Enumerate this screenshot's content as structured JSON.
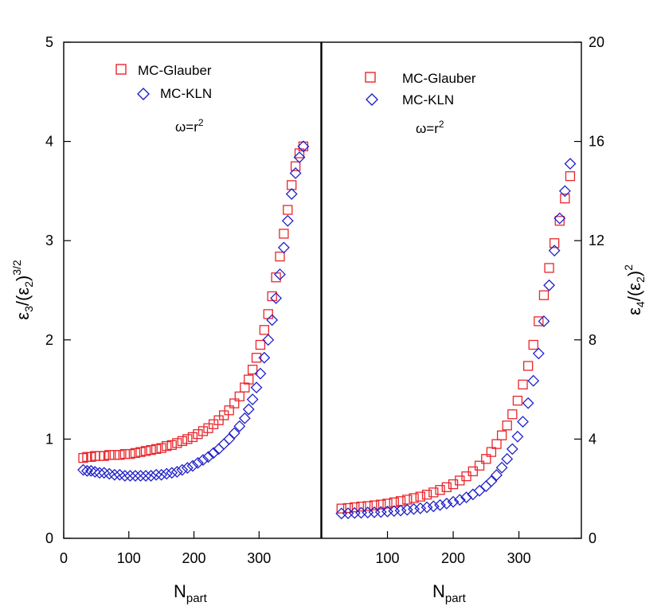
{
  "chart_data": [
    {
      "type": "scatter",
      "panel": "left",
      "xlabel": "N",
      "xlabel_sub": "part",
      "ylabel": "ε3/(ε2)^3/2",
      "xlim": [
        0,
        395
      ],
      "ylim": [
        0,
        5
      ],
      "xticks": [
        0,
        100,
        200,
        300
      ],
      "xtick_labels": [
        "0",
        "100",
        "200",
        "300"
      ],
      "yticks": [
        0,
        1,
        2,
        3,
        4,
        5
      ],
      "ytick_labels": [
        "0",
        "1",
        "2",
        "3",
        "4",
        "5"
      ],
      "y_axis_side": "left",
      "annotation": "ω=r2",
      "legend": [
        "MC-Glauber",
        "MC-KLN"
      ],
      "series": [
        {
          "name": "MC-Glauber",
          "color": "#e8262b",
          "marker": "square",
          "points": [
            [
              30,
              0.81
            ],
            [
              36,
              0.82
            ],
            [
              42,
              0.82
            ],
            [
              48,
              0.83
            ],
            [
              55,
              0.83
            ],
            [
              62,
              0.83
            ],
            [
              70,
              0.84
            ],
            [
              78,
              0.84
            ],
            [
              86,
              0.84
            ],
            [
              94,
              0.85
            ],
            [
              102,
              0.85
            ],
            [
              110,
              0.86
            ],
            [
              118,
              0.87
            ],
            [
              126,
              0.88
            ],
            [
              134,
              0.89
            ],
            [
              142,
              0.9
            ],
            [
              150,
              0.91
            ],
            [
              158,
              0.93
            ],
            [
              166,
              0.94
            ],
            [
              174,
              0.96
            ],
            [
              182,
              0.98
            ],
            [
              190,
              1.0
            ],
            [
              198,
              1.02
            ],
            [
              206,
              1.05
            ],
            [
              214,
              1.08
            ],
            [
              222,
              1.11
            ],
            [
              230,
              1.15
            ],
            [
              238,
              1.19
            ],
            [
              246,
              1.24
            ],
            [
              254,
              1.29
            ],
            [
              262,
              1.36
            ],
            [
              270,
              1.43
            ],
            [
              278,
              1.52
            ],
            [
              284,
              1.6
            ],
            [
              290,
              1.7
            ],
            [
              296,
              1.82
            ],
            [
              302,
              1.95
            ],
            [
              308,
              2.1
            ],
            [
              314,
              2.26
            ],
            [
              320,
              2.44
            ],
            [
              326,
              2.63
            ],
            [
              332,
              2.84
            ],
            [
              338,
              3.07
            ],
            [
              344,
              3.31
            ],
            [
              350,
              3.56
            ],
            [
              356,
              3.75
            ],
            [
              362,
              3.88
            ],
            [
              368,
              3.95
            ]
          ]
        },
        {
          "name": "MC-KLN",
          "color": "#2121c9",
          "marker": "diamond",
          "points": [
            [
              30,
              0.69
            ],
            [
              36,
              0.68
            ],
            [
              42,
              0.68
            ],
            [
              48,
              0.67
            ],
            [
              55,
              0.66
            ],
            [
              62,
              0.66
            ],
            [
              70,
              0.65
            ],
            [
              78,
              0.64
            ],
            [
              86,
              0.64
            ],
            [
              94,
              0.63
            ],
            [
              102,
              0.63
            ],
            [
              110,
              0.63
            ],
            [
              118,
              0.63
            ],
            [
              126,
              0.63
            ],
            [
              134,
              0.63
            ],
            [
              142,
              0.64
            ],
            [
              150,
              0.64
            ],
            [
              158,
              0.65
            ],
            [
              166,
              0.66
            ],
            [
              174,
              0.67
            ],
            [
              182,
              0.69
            ],
            [
              190,
              0.71
            ],
            [
              198,
              0.73
            ],
            [
              206,
              0.76
            ],
            [
              214,
              0.79
            ],
            [
              222,
              0.82
            ],
            [
              230,
              0.86
            ],
            [
              238,
              0.9
            ],
            [
              246,
              0.95
            ],
            [
              254,
              1.0
            ],
            [
              262,
              1.06
            ],
            [
              270,
              1.13
            ],
            [
              278,
              1.21
            ],
            [
              284,
              1.3
            ],
            [
              290,
              1.4
            ],
            [
              296,
              1.52
            ],
            [
              302,
              1.66
            ],
            [
              308,
              1.82
            ],
            [
              314,
              2.0
            ],
            [
              320,
              2.2
            ],
            [
              326,
              2.42
            ],
            [
              332,
              2.66
            ],
            [
              338,
              2.93
            ],
            [
              344,
              3.2
            ],
            [
              350,
              3.47
            ],
            [
              356,
              3.68
            ],
            [
              362,
              3.84
            ],
            [
              368,
              3.95
            ]
          ]
        }
      ]
    },
    {
      "type": "scatter",
      "panel": "right",
      "xlabel": "N",
      "xlabel_sub": "part",
      "ylabel": "ε4/(ε2)^2",
      "xlim": [
        0,
        395
      ],
      "ylim": [
        0,
        20
      ],
      "xticks": [
        100,
        200,
        300
      ],
      "xtick_labels": [
        "100",
        "200",
        "300"
      ],
      "yticks": [
        0,
        4,
        8,
        12,
        16,
        20
      ],
      "ytick_labels": [
        "0",
        "4",
        "8",
        "12",
        "16",
        "20"
      ],
      "y_axis_side": "right",
      "annotation": "ω=r2",
      "legend": [
        "MC-Glauber",
        "MC-KLN"
      ],
      "series": [
        {
          "name": "MC-Glauber",
          "color": "#e8262b",
          "marker": "square",
          "points": [
            [
              30,
              1.2
            ],
            [
              40,
              1.22
            ],
            [
              50,
              1.25
            ],
            [
              60,
              1.28
            ],
            [
              70,
              1.3
            ],
            [
              80,
              1.33
            ],
            [
              90,
              1.36
            ],
            [
              100,
              1.4
            ],
            [
              110,
              1.45
            ],
            [
              120,
              1.5
            ],
            [
              130,
              1.56
            ],
            [
              140,
              1.62
            ],
            [
              150,
              1.68
            ],
            [
              160,
              1.76
            ],
            [
              170,
              1.85
            ],
            [
              180,
              1.95
            ],
            [
              190,
              2.06
            ],
            [
              200,
              2.18
            ],
            [
              210,
              2.33
            ],
            [
              220,
              2.5
            ],
            [
              230,
              2.7
            ],
            [
              240,
              2.93
            ],
            [
              250,
              3.2
            ],
            [
              258,
              3.48
            ],
            [
              266,
              3.8
            ],
            [
              274,
              4.15
            ],
            [
              282,
              4.55
            ],
            [
              290,
              5.0
            ],
            [
              298,
              5.55
            ],
            [
              306,
              6.2
            ],
            [
              314,
              6.95
            ],
            [
              322,
              7.8
            ],
            [
              330,
              8.75
            ],
            [
              338,
              9.8
            ],
            [
              346,
              10.9
            ],
            [
              354,
              11.9
            ],
            [
              362,
              12.8
            ],
            [
              370,
              13.7
            ],
            [
              378,
              14.6
            ]
          ]
        },
        {
          "name": "MC-KLN",
          "color": "#2121c9",
          "marker": "diamond",
          "points": [
            [
              30,
              1.0
            ],
            [
              40,
              1.01
            ],
            [
              50,
              1.02
            ],
            [
              60,
              1.03
            ],
            [
              70,
              1.04
            ],
            [
              80,
              1.05
            ],
            [
              90,
              1.06
            ],
            [
              100,
              1.08
            ],
            [
              110,
              1.1
            ],
            [
              120,
              1.12
            ],
            [
              130,
              1.15
            ],
            [
              140,
              1.18
            ],
            [
              150,
              1.21
            ],
            [
              160,
              1.25
            ],
            [
              170,
              1.29
            ],
            [
              180,
              1.34
            ],
            [
              190,
              1.4
            ],
            [
              200,
              1.47
            ],
            [
              210,
              1.55
            ],
            [
              220,
              1.65
            ],
            [
              230,
              1.77
            ],
            [
              240,
              1.92
            ],
            [
              250,
              2.1
            ],
            [
              258,
              2.3
            ],
            [
              266,
              2.55
            ],
            [
              274,
              2.85
            ],
            [
              282,
              3.2
            ],
            [
              290,
              3.6
            ],
            [
              298,
              4.1
            ],
            [
              306,
              4.7
            ],
            [
              314,
              5.45
            ],
            [
              322,
              6.35
            ],
            [
              330,
              7.45
            ],
            [
              338,
              8.75
            ],
            [
              346,
              10.2
            ],
            [
              354,
              11.6
            ],
            [
              362,
              12.9
            ],
            [
              370,
              14.0
            ],
            [
              378,
              15.1
            ]
          ]
        }
      ]
    }
  ]
}
